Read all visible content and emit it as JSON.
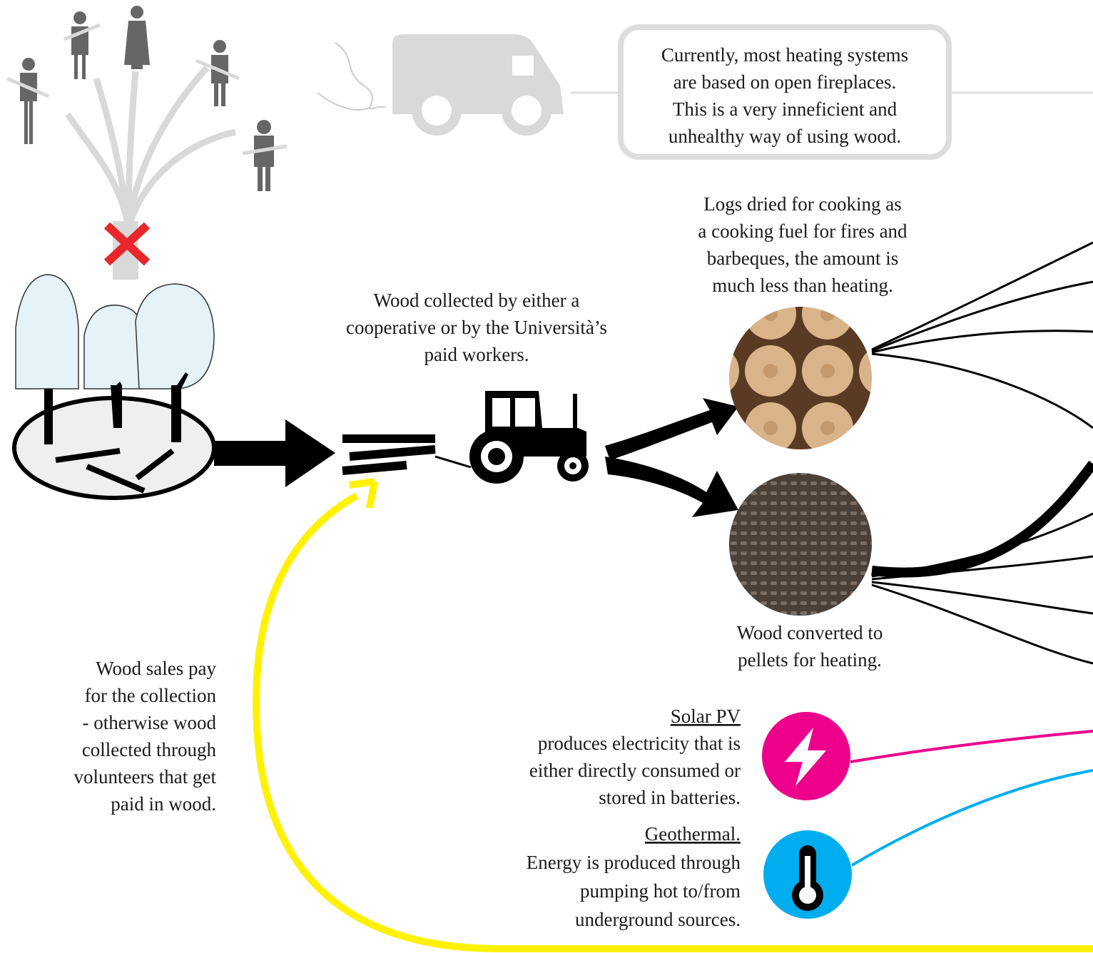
{
  "callout": {
    "lines": [
      "Currently, most heating systems",
      "are based on open fireplaces.",
      "This is a very inneficient and",
      "unhealthy way of using wood."
    ]
  },
  "logs": {
    "lines": [
      "Logs dried for cooking as",
      "a cooking fuel for fires and",
      "barbeques, the amount is",
      "much less than heating."
    ]
  },
  "collection": {
    "lines": [
      "Wood collected by either a",
      "cooperative or by the Università’s",
      "paid workers."
    ]
  },
  "pellets": {
    "lines": [
      "Wood converted to",
      "pellets for heating."
    ]
  },
  "sales": {
    "lines": [
      "Wood sales pay",
      "for the collection",
      "- otherwise wood",
      "collected through",
      "volunteers that get",
      "paid in wood."
    ]
  },
  "solar": {
    "title": "Solar PV",
    "lines": [
      "produces electricity that is",
      "either directly consumed or",
      "stored in batteries."
    ]
  },
  "geothermal": {
    "title": "Geothermal.",
    "lines": [
      "Energy is produced through",
      "pumping hot to/from",
      "underground sources."
    ]
  }
}
